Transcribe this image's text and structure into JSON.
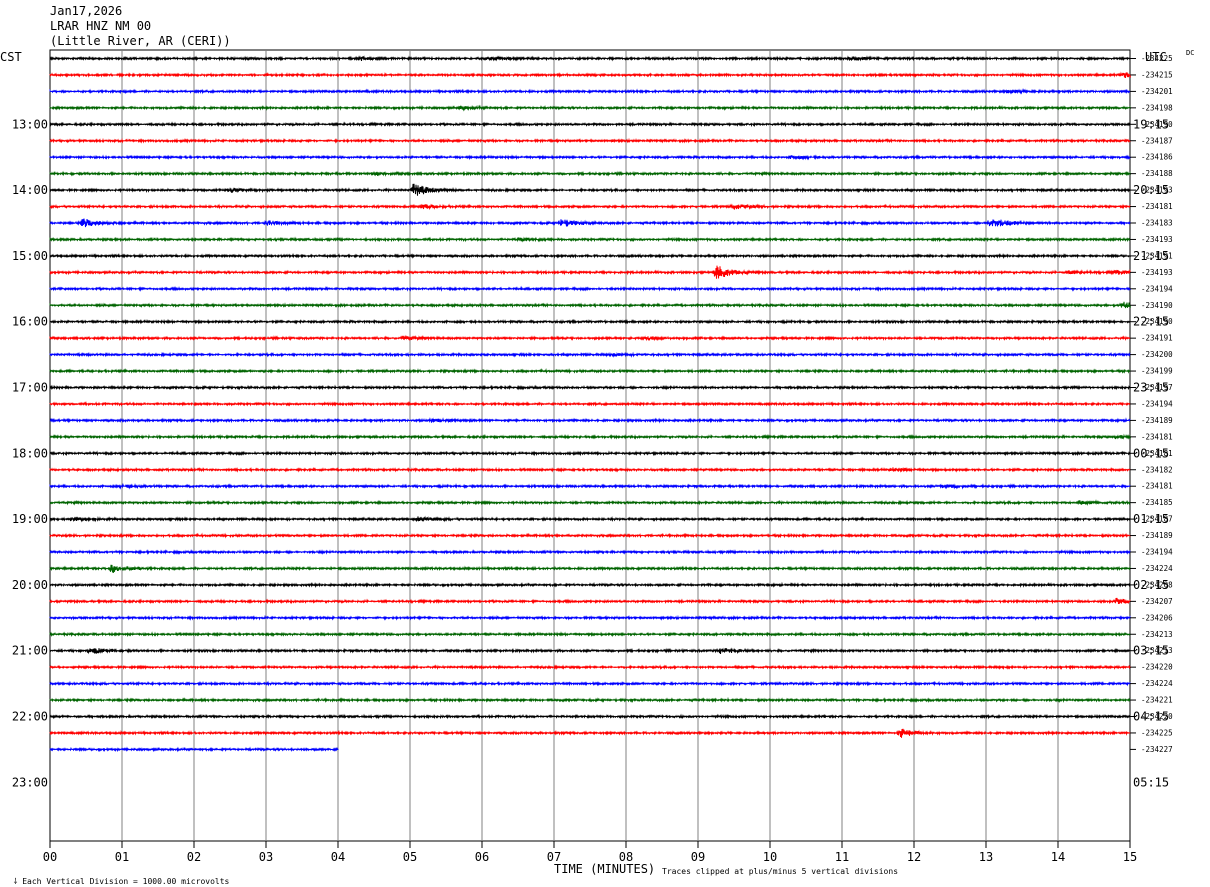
{
  "header": {
    "date": "Jan17,2026",
    "station": "LRAR HNZ NM 00",
    "location": "(Little River, AR (CERI))"
  },
  "left_timezone": "CST",
  "right_timezone": "UTC",
  "dc_label": "DC",
  "footer": {
    "scale_note": "Each Vertical Division = 1000.00 microvolts",
    "clip_note": "Traces clipped at plus/minus 5 vertical divisions"
  },
  "colors": {
    "trace_cycle": [
      "#000000",
      "#ff0000",
      "#0000ff",
      "#006400"
    ],
    "grid": "#808080",
    "frame": "#000000"
  },
  "chart_data": {
    "type": "line",
    "title": "",
    "xlabel": "TIME (MINUTES)",
    "ylabel": "",
    "xlim": [
      0,
      15
    ],
    "x_tick_labels": [
      "00",
      "01",
      "02",
      "03",
      "04",
      "05",
      "06",
      "07",
      "08",
      "09",
      "10",
      "11",
      "12",
      "13",
      "14",
      "15"
    ],
    "grid": true,
    "trace_minutes": 15,
    "last_trace_end_minute": 4,
    "left_hour_labels": [
      "13:00",
      "14:00",
      "15:00",
      "16:00",
      "17:00",
      "18:00",
      "19:00",
      "20:00",
      "21:00",
      "22:00",
      "23:00"
    ],
    "right_hour_labels": [
      "19:15",
      "20:15",
      "21:15",
      "22:15",
      "23:15",
      "00:15",
      "01:15",
      "02:15",
      "03:15",
      "04:15",
      "05:15"
    ],
    "dc_offsets": [
      "-234225",
      "-234215",
      "-234201",
      "-234198",
      "-234190",
      "-234187",
      "-234186",
      "-234188",
      "-234193",
      "-234181",
      "-234183",
      "-234193",
      "-234191",
      "-234193",
      "-234194",
      "-234190",
      "-234190",
      "-234191",
      "-234200",
      "-234199",
      "-234197",
      "-234194",
      "-234189",
      "-234181",
      "-234181",
      "-234182",
      "-234181",
      "-234185",
      "-234187",
      "-234189",
      "-234194",
      "-234224",
      "-234208",
      "-234207",
      "-234206",
      "-234213",
      "-234213",
      "-234220",
      "-234224",
      "-234221",
      "-234220",
      "-234225",
      "-234227"
    ],
    "events": [
      {
        "trace": 0,
        "minute": 4.3,
        "amplitude": 1.5
      },
      {
        "trace": 0,
        "minute": 6.1,
        "amplitude": 1.5
      },
      {
        "trace": 0,
        "minute": 11.1,
        "amplitude": 1.4
      },
      {
        "trace": 1,
        "minute": 14.9,
        "amplitude": 2.8
      },
      {
        "trace": 2,
        "minute": 13.3,
        "amplitude": 1.5
      },
      {
        "trace": 3,
        "minute": 5.7,
        "amplitude": 1.5
      },
      {
        "trace": 6,
        "minute": 10.3,
        "amplitude": 1.5
      },
      {
        "trace": 7,
        "minute": 4.5,
        "amplitude": 1.4
      },
      {
        "trace": 8,
        "minute": 2.5,
        "amplitude": 2.0
      },
      {
        "trace": 8,
        "minute": 5.05,
        "amplitude": 6.5
      },
      {
        "trace": 9,
        "minute": 5.15,
        "amplitude": 2.2
      },
      {
        "trace": 9,
        "minute": 9.5,
        "amplitude": 2.2
      },
      {
        "trace": 10,
        "minute": 0.45,
        "amplitude": 4.5
      },
      {
        "trace": 10,
        "minute": 3.0,
        "amplitude": 2.0
      },
      {
        "trace": 10,
        "minute": 7.1,
        "amplitude": 4.0
      },
      {
        "trace": 10,
        "minute": 13.05,
        "amplitude": 6.5
      },
      {
        "trace": 11,
        "minute": 6.5,
        "amplitude": 1.5
      },
      {
        "trace": 13,
        "minute": 9.25,
        "amplitude": 7.0
      },
      {
        "trace": 13,
        "minute": 14.1,
        "amplitude": 1.8
      },
      {
        "trace": 13,
        "minute": 14.8,
        "amplitude": 1.8
      },
      {
        "trace": 15,
        "minute": 14.9,
        "amplitude": 3.5
      },
      {
        "trace": 17,
        "minute": 4.9,
        "amplitude": 1.5
      },
      {
        "trace": 17,
        "minute": 8.3,
        "amplitude": 1.4
      },
      {
        "trace": 18,
        "minute": 7.8,
        "amplitude": 1.2
      },
      {
        "trace": 22,
        "minute": 5.3,
        "amplitude": 1.6
      },
      {
        "trace": 23,
        "minute": 14.8,
        "amplitude": 1.5
      },
      {
        "trace": 25,
        "minute": 11.7,
        "amplitude": 1.5
      },
      {
        "trace": 26,
        "minute": 12.4,
        "amplitude": 1.8
      },
      {
        "trace": 26,
        "minute": 1.0,
        "amplitude": 1.4
      },
      {
        "trace": 27,
        "minute": 14.3,
        "amplitude": 1.6
      },
      {
        "trace": 28,
        "minute": 0.3,
        "amplitude": 2.0
      },
      {
        "trace": 28,
        "minute": 5.1,
        "amplitude": 2.2
      },
      {
        "trace": 31,
        "minute": 0.85,
        "amplitude": 4.5
      },
      {
        "trace": 33,
        "minute": 14.8,
        "amplitude": 2.8
      },
      {
        "trace": 36,
        "minute": 0.55,
        "amplitude": 3.0
      },
      {
        "trace": 36,
        "minute": 9.3,
        "amplitude": 3.2
      },
      {
        "trace": 41,
        "minute": 11.8,
        "amplitude": 4.5
      }
    ]
  }
}
